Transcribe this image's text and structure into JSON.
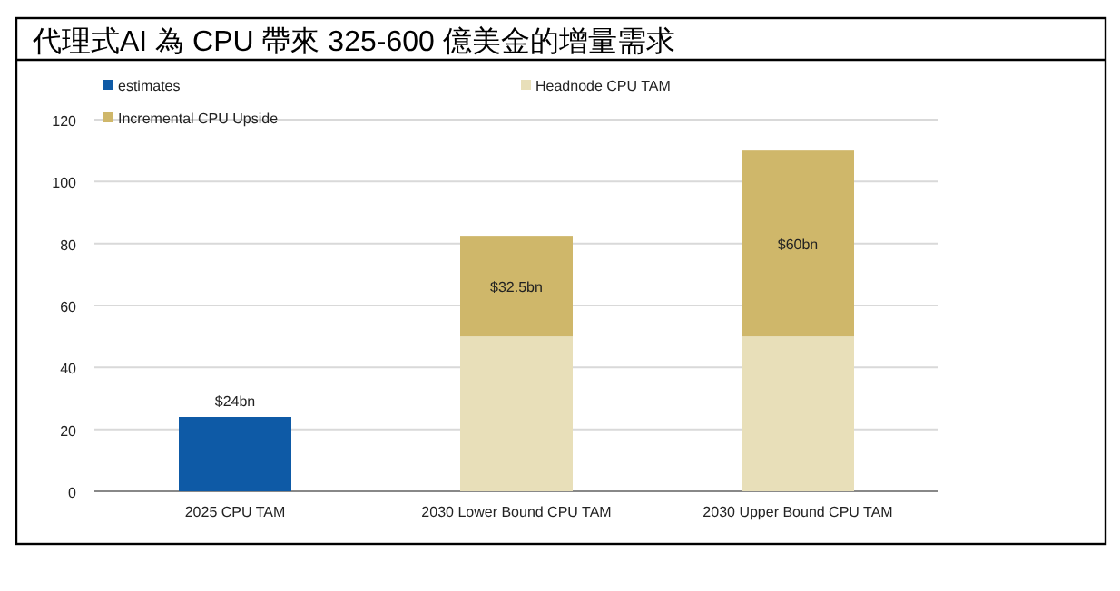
{
  "chart_data": {
    "type": "bar",
    "title": "代理式AI 為 CPU 帶來 325-600 億美金的增量需求",
    "categories": [
      "2025 CPU TAM",
      "2030 Lower Bound CPU TAM",
      "2030 Upper Bound CPU TAM"
    ],
    "stacked": true,
    "series": [
      {
        "name": "estimates",
        "color": "#0e5aa6",
        "values": [
          24,
          null,
          null
        ],
        "value_labels": [
          "$24bn",
          null,
          null
        ]
      },
      {
        "name": "Headnode CPU TAM",
        "color": "#e8dfb9",
        "values": [
          null,
          50,
          50
        ],
        "value_labels": [
          null,
          null,
          null
        ]
      },
      {
        "name": "Incremental CPU Upside",
        "color": "#cfb76a",
        "values": [
          null,
          32.5,
          60
        ],
        "value_labels": [
          null,
          "$32.5bn",
          "$60bn"
        ]
      }
    ],
    "ylim": [
      0,
      120
    ],
    "yticks": [
      0,
      20,
      40,
      60,
      80,
      100,
      120
    ],
    "grid": "y",
    "legend": "top left"
  }
}
